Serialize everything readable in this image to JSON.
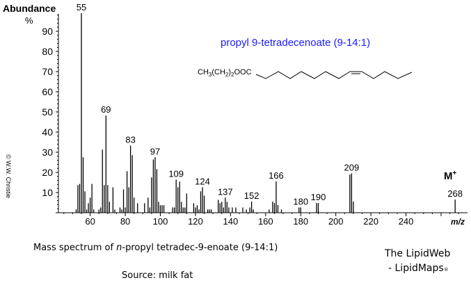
{
  "chart_data": {
    "type": "bar",
    "title": "propyl 9-tetradecenoate  (9-14:1)",
    "structure_formula": {
      "prefix": "CH",
      "sub1": "3",
      "mid": "(CH",
      "sub2": "2",
      "close": ")",
      "sub3": "2",
      "suffix": "OOC"
    },
    "ylabel": "Abundance",
    "yunit": "%",
    "xlabel": "m/z",
    "xlim": [
      40,
      275
    ],
    "ylim": [
      0,
      100
    ],
    "xticks": [
      60,
      80,
      100,
      120,
      140,
      160,
      180,
      200,
      220,
      240
    ],
    "yticks": [
      10,
      20,
      30,
      40,
      50,
      60,
      70,
      80,
      90
    ],
    "grid": false,
    "molecular_ion_label": "M+",
    "peaks": [
      [
        52,
        1.6
      ],
      [
        53,
        13.7
      ],
      [
        54,
        14.3
      ],
      [
        55,
        99
      ],
      [
        56,
        27.5
      ],
      [
        57,
        10.6
      ],
      [
        58,
        1.6
      ],
      [
        59,
        4.7
      ],
      [
        60,
        7.5
      ],
      [
        61,
        14.3
      ],
      [
        62,
        1.6
      ],
      [
        65,
        1.6
      ],
      [
        66,
        2.6
      ],
      [
        67,
        31.3
      ],
      [
        68,
        13.7
      ],
      [
        69,
        48.2
      ],
      [
        70,
        13.7
      ],
      [
        71,
        5.4
      ],
      [
        73,
        12.6
      ],
      [
        74,
        1.6
      ],
      [
        77,
        2.6
      ],
      [
        78,
        1.6
      ],
      [
        79,
        11.6
      ],
      [
        80,
        2.6
      ],
      [
        81,
        20.6
      ],
      [
        82,
        12.6
      ],
      [
        83,
        33.3
      ],
      [
        84,
        28.5
      ],
      [
        85,
        7.5
      ],
      [
        87,
        4.7
      ],
      [
        91,
        4.7
      ],
      [
        93,
        7.5
      ],
      [
        94,
        2.6
      ],
      [
        95,
        17.5
      ],
      [
        96,
        26.4
      ],
      [
        97,
        27.5
      ],
      [
        98,
        21.6
      ],
      [
        99,
        5.4
      ],
      [
        100,
        3.7
      ],
      [
        101,
        3.7
      ],
      [
        102,
        3.7
      ],
      [
        107,
        2.6
      ],
      [
        108,
        2.6
      ],
      [
        109,
        16.4
      ],
      [
        110,
        12.6
      ],
      [
        111,
        15.4
      ],
      [
        112,
        5.4
      ],
      [
        113,
        2.6
      ],
      [
        114,
        2.6
      ],
      [
        115,
        9.5
      ],
      [
        119,
        4.7
      ],
      [
        120,
        2.6
      ],
      [
        121,
        3.7
      ],
      [
        122,
        1.6
      ],
      [
        123,
        10.6
      ],
      [
        124,
        12.6
      ],
      [
        125,
        8.5
      ],
      [
        127,
        1.6
      ],
      [
        128,
        1.6
      ],
      [
        129,
        1.6
      ],
      [
        133,
        6.4
      ],
      [
        134,
        4.7
      ],
      [
        135,
        5.4
      ],
      [
        136,
        2.6
      ],
      [
        137,
        7.5
      ],
      [
        138,
        5.4
      ],
      [
        139,
        2.6
      ],
      [
        141,
        2.6
      ],
      [
        143,
        2.6
      ],
      [
        147,
        2.6
      ],
      [
        149,
        1.6
      ],
      [
        151,
        2.6
      ],
      [
        152,
        5.5
      ],
      [
        153,
        1.6
      ],
      [
        162,
        1.6
      ],
      [
        164,
        5.5
      ],
      [
        165,
        4.8
      ],
      [
        166,
        15.5
      ],
      [
        167,
        3.8
      ],
      [
        169,
        1.6
      ],
      [
        179,
        2.6
      ],
      [
        180,
        2.6
      ],
      [
        189,
        4.8
      ],
      [
        190,
        4.8
      ],
      [
        208,
        18.9
      ],
      [
        209,
        19.5
      ],
      [
        210,
        5.5
      ],
      [
        268,
        6.5
      ]
    ],
    "labeled_peaks": [
      55,
      69,
      83,
      97,
      109,
      124,
      137,
      152,
      166,
      180,
      190,
      209,
      268
    ],
    "colors": {
      "title": "#1a1aff",
      "bars": "#000000"
    }
  },
  "copyright": "© W.W. Christie",
  "caption": {
    "pre": "Mass spectrum of ",
    "italic": "n",
    "post": "-propyl tetradec-9-enoate  (9-14:1)"
  },
  "source": "Source: milk fat",
  "branding": {
    "line1": "The LipidWeb",
    "line2": "- LipidMaps",
    "reg": "®"
  }
}
